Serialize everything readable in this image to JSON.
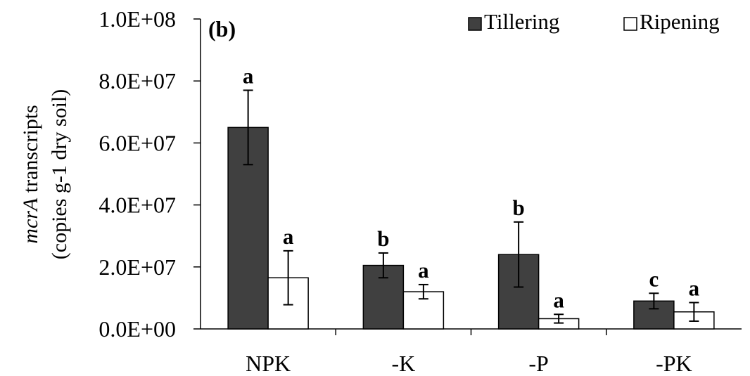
{
  "chart_data": {
    "type": "bar",
    "panel_label": "(b)",
    "categories": [
      "NPK",
      "-K",
      "-P",
      "-PK"
    ],
    "series": [
      {
        "name": "Tillering",
        "color": "#404040",
        "values": [
          65000000,
          20500000,
          24000000,
          9000000
        ],
        "errors": [
          12000000,
          4000000,
          10500000,
          2500000
        ],
        "sig_letters": [
          "a",
          "b",
          "b",
          "c"
        ]
      },
      {
        "name": "Ripening",
        "color": "#ffffff",
        "values": [
          16500000,
          12000000,
          3300000,
          5500000
        ],
        "errors": [
          8700000,
          2300000,
          1400000,
          3000000
        ],
        "sig_letters": [
          "a",
          "a",
          "a",
          "a"
        ]
      }
    ],
    "y_ticks": [
      "0.0E+00",
      "2.0E+07",
      "4.0E+07",
      "6.0E+07",
      "8.0E+07",
      "1.0E+08"
    ],
    "ylim": [
      0,
      100000000
    ],
    "ylabel": {
      "gene": "mcrA",
      "line1_rest": " transcripts",
      "line2": "(copies g-1 dry soil)"
    },
    "xlabel": "",
    "legend_position": "top-right",
    "grid": false
  }
}
